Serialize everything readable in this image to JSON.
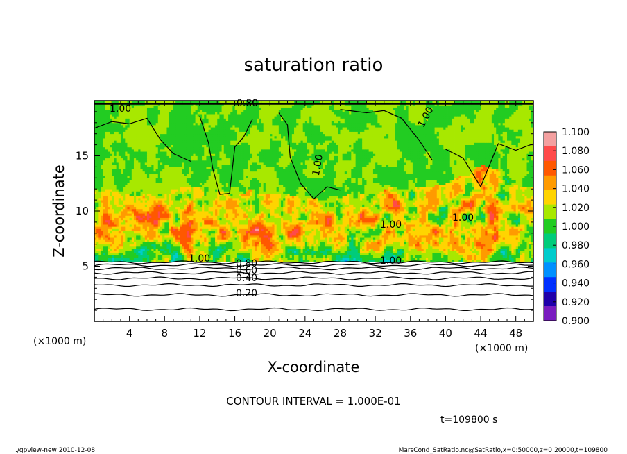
{
  "chart_data": {
    "type": "heatmap",
    "title": "saturation ratio",
    "xlabel": "X-coordinate",
    "ylabel": "Z-coordinate",
    "x_unit": "(×1000 m)",
    "z_unit": "(×1000 m)",
    "xlim": [
      0,
      50
    ],
    "zlim": [
      0,
      20
    ],
    "x_ticks": [
      "4",
      "8",
      "12",
      "16",
      "20",
      "24",
      "28",
      "32",
      "36",
      "40",
      "44",
      "48"
    ],
    "z_ticks": [
      "5",
      "10",
      "15"
    ],
    "colorbar": {
      "levels": [
        "1.100",
        "1.080",
        "1.060",
        "1.040",
        "1.020",
        "1.000",
        "0.980",
        "0.960",
        "0.940",
        "0.920",
        "0.900"
      ],
      "colors": [
        "#f4a0a0",
        "#ff4a4a",
        "#ff5800",
        "#ff9a00",
        "#ffd400",
        "#a8e800",
        "#22cc22",
        "#00cc7a",
        "#00cccc",
        "#0090ff",
        "#0030ff",
        "#1f00aa",
        "#7a1cc0"
      ]
    },
    "contour_labels": [
      "0.80",
      "1.00",
      "1.00",
      "1.00",
      "1.00",
      "1.00",
      "1.00",
      "1.00",
      "0.80",
      "0.60",
      "0.40",
      "0.20"
    ],
    "contour_interval": "CONTOUR INTERVAL = 1.000E-01",
    "time": "t=109800 s"
  },
  "footer": {
    "left": "./gpview-new  2010-12-08",
    "right": "MarsCond_SatRatio.nc@SatRatio,x=0:50000,z=0:20000,t=109800"
  }
}
